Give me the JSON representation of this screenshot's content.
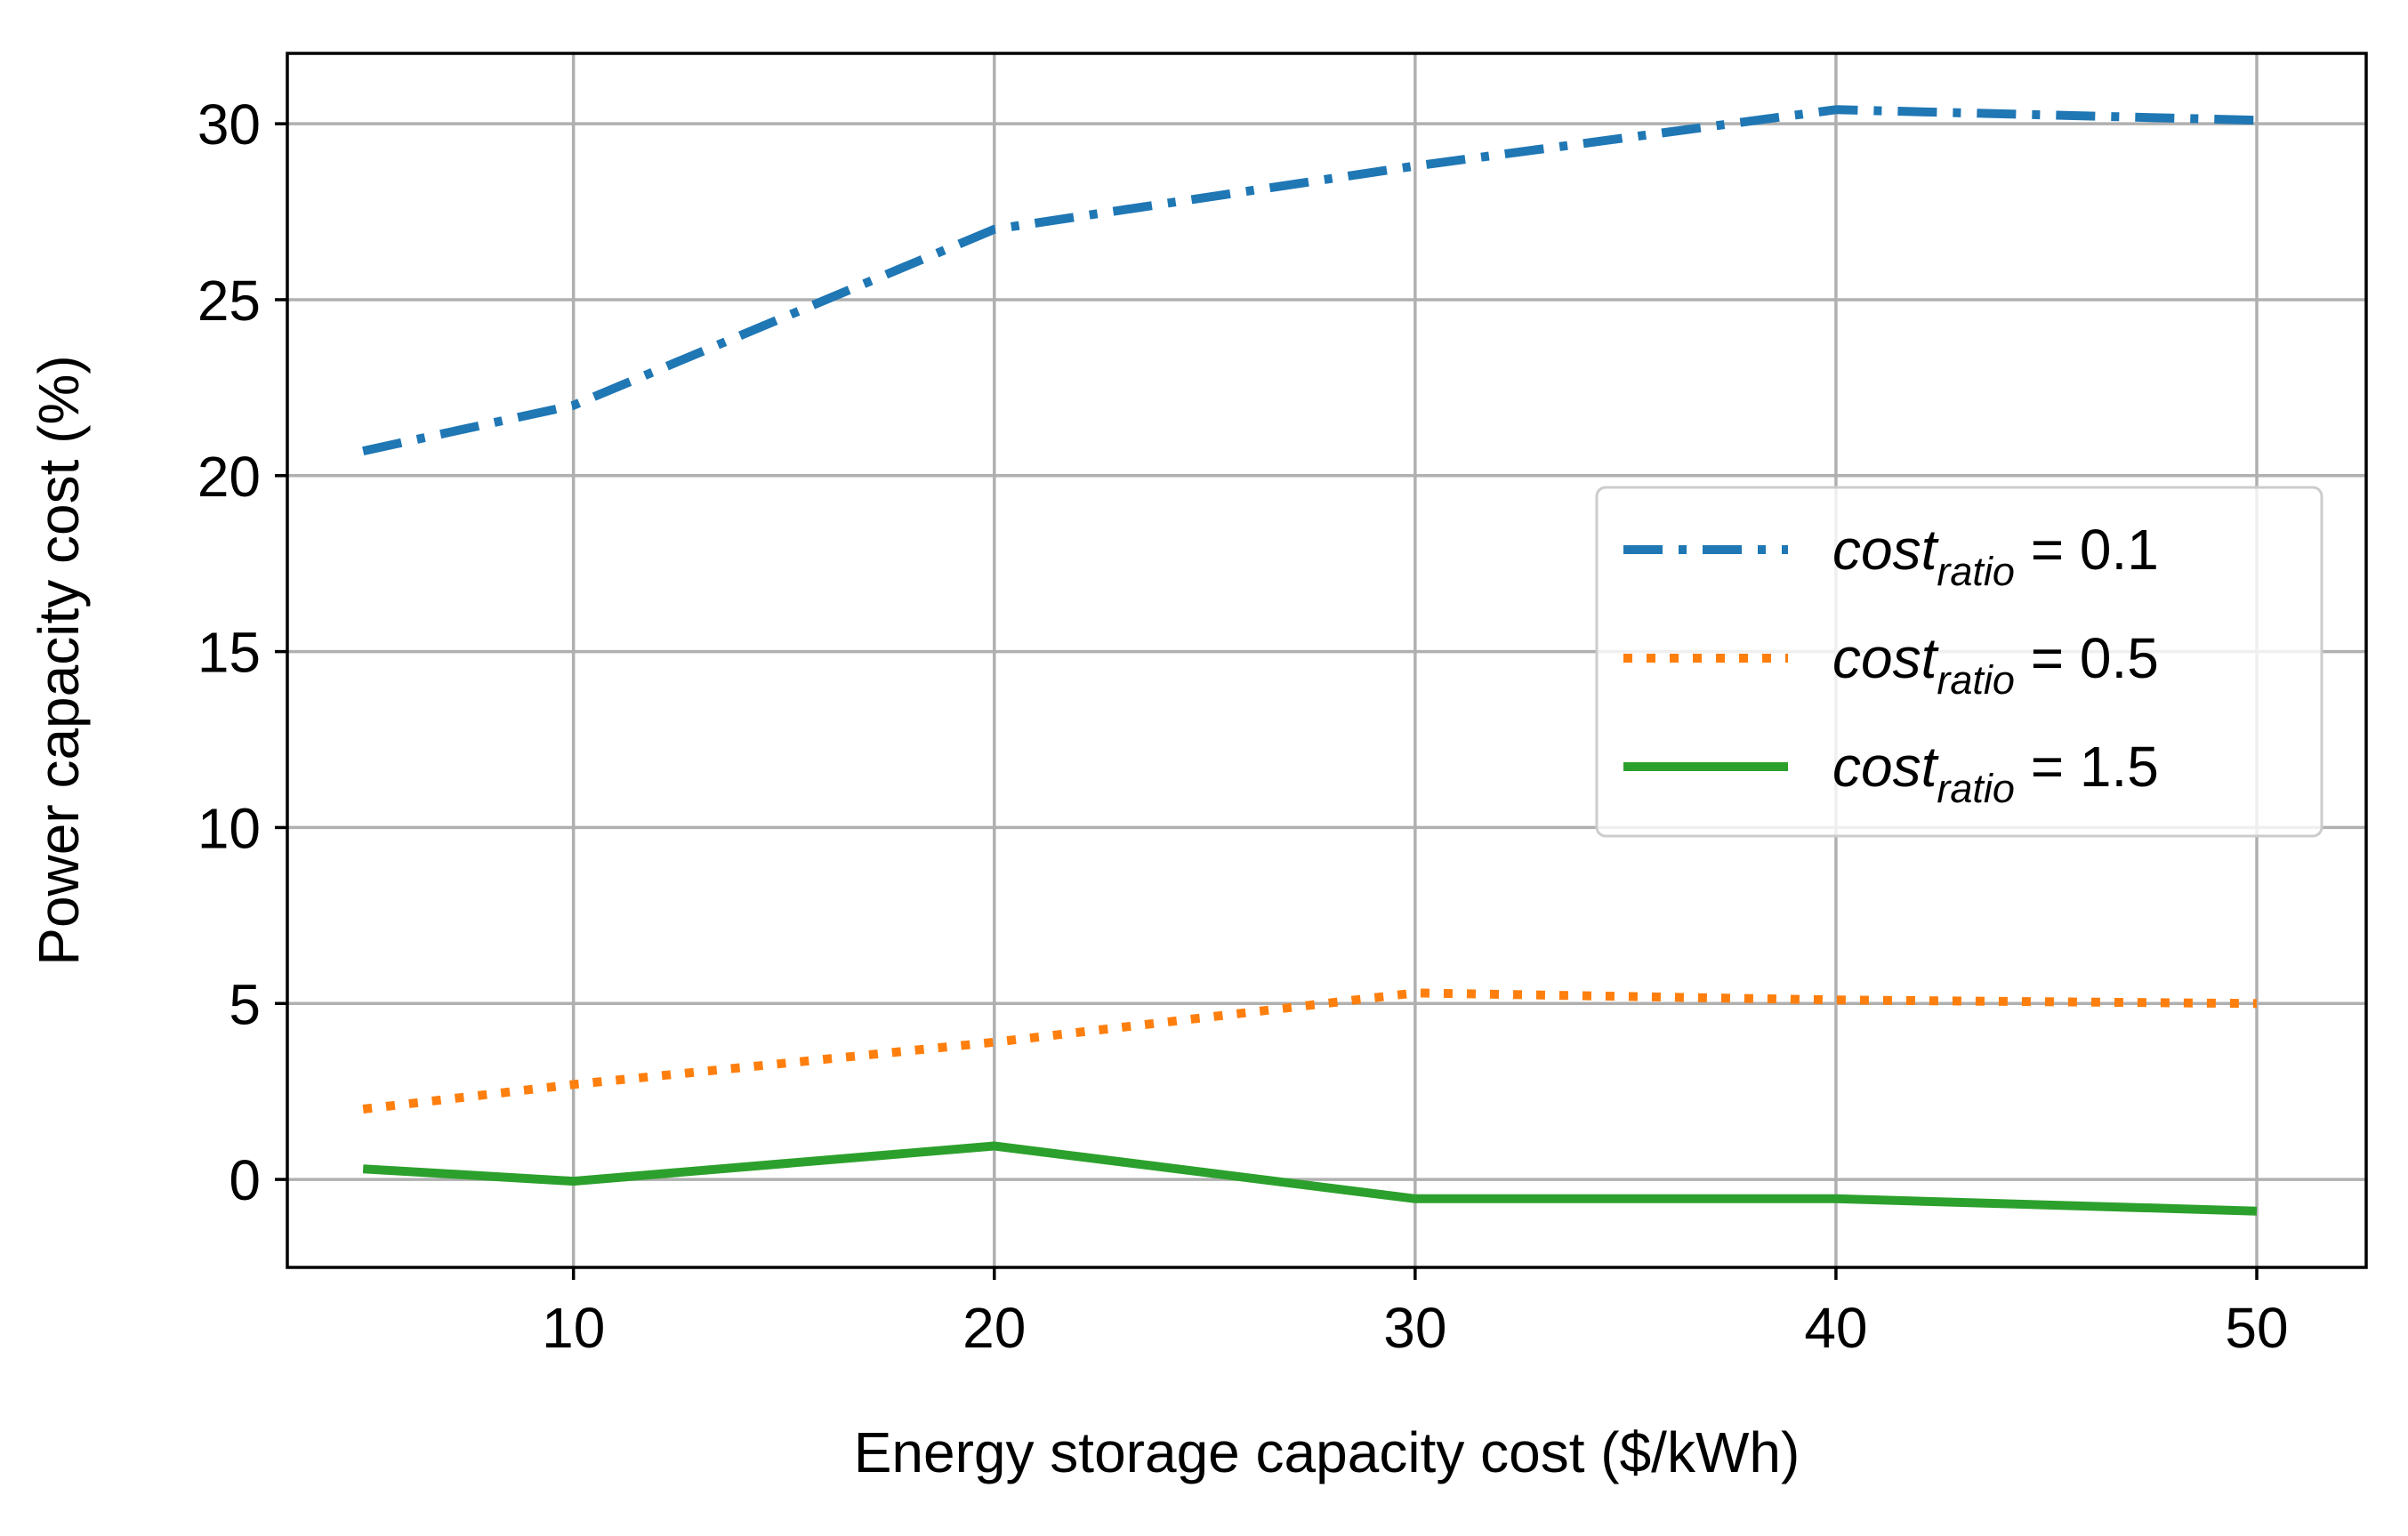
{
  "chart_data": {
    "type": "line",
    "title": "",
    "xlabel": "Energy storage capacity cost ($/kWh)",
    "ylabel": "Power capacity cost (%)",
    "xlim": [
      3.2,
      52.6
    ],
    "ylim": [
      -2.5,
      32.0
    ],
    "xticks": [
      10,
      20,
      30,
      40,
      50
    ],
    "yticks": [
      0,
      5,
      10,
      15,
      20,
      25,
      30
    ],
    "grid": true,
    "legend_position": "center-right",
    "x": [
      5,
      10,
      20,
      30,
      40,
      50
    ],
    "series": [
      {
        "name": "cost_ratio = 0.1",
        "name_base": "cost",
        "name_sub": "ratio",
        "name_suffix": " = 0.1",
        "style": "dashdot",
        "color": "#1f77b4",
        "values": [
          20.7,
          22.0,
          27.0,
          28.8,
          30.4,
          30.1
        ]
      },
      {
        "name": "cost_ratio = 0.5",
        "name_base": "cost",
        "name_sub": "ratio",
        "name_suffix": " = 0.5",
        "style": "dotted",
        "color": "#ff7f0e",
        "values": [
          2.0,
          2.7,
          3.9,
          5.3,
          5.1,
          5.0
        ]
      },
      {
        "name": "cost_ratio = 1.5",
        "name_base": "cost",
        "name_sub": "ratio",
        "name_suffix": " = 1.5",
        "style": "solid",
        "color": "#2ca02c",
        "values": [
          0.3,
          -0.05,
          0.95,
          -0.55,
          -0.55,
          -0.9
        ]
      }
    ]
  }
}
